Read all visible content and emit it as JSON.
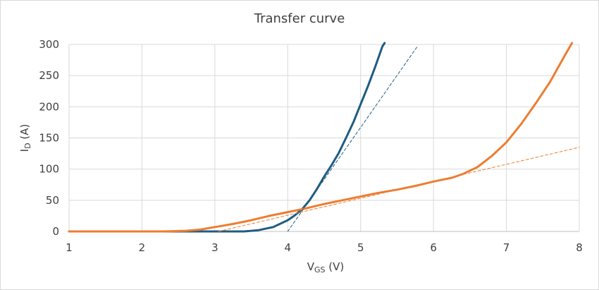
{
  "chart_data": {
    "type": "line",
    "title": "Transfer curve",
    "xlabel": {
      "main": "V",
      "sub": "GS",
      "unit": " (V)"
    },
    "ylabel": {
      "main": "I",
      "sub": "D",
      "unit": " (A)"
    },
    "xlim": [
      1,
      8
    ],
    "ylim": [
      0,
      300
    ],
    "xticks": [
      1,
      2,
      3,
      4,
      5,
      6,
      7,
      8
    ],
    "yticks": [
      0,
      50,
      100,
      150,
      200,
      250,
      300
    ],
    "grid": true,
    "legend": "none",
    "series": [
      {
        "color": "#1f5c82",
        "style": "solid",
        "points": [
          [
            1,
            0
          ],
          [
            2,
            0
          ],
          [
            3,
            0
          ],
          [
            3.4,
            0
          ],
          [
            3.6,
            2
          ],
          [
            3.8,
            7
          ],
          [
            4.0,
            18
          ],
          [
            4.1,
            26
          ],
          [
            4.2,
            36
          ],
          [
            4.3,
            50
          ],
          [
            4.4,
            68
          ],
          [
            4.5,
            88
          ],
          [
            4.6,
            106
          ],
          [
            4.7,
            126
          ],
          [
            4.8,
            150
          ],
          [
            4.9,
            175
          ],
          [
            5.0,
            204
          ],
          [
            5.1,
            233
          ],
          [
            5.2,
            264
          ],
          [
            5.3,
            297
          ],
          [
            5.33,
            305
          ]
        ]
      },
      {
        "color": "#ed7d31",
        "style": "solid",
        "points": [
          [
            1,
            0
          ],
          [
            2,
            0
          ],
          [
            2.3,
            0
          ],
          [
            2.6,
            1
          ],
          [
            2.8,
            3
          ],
          [
            3.0,
            7
          ],
          [
            3.25,
            12
          ],
          [
            3.5,
            18
          ],
          [
            3.75,
            25
          ],
          [
            4.0,
            31
          ],
          [
            4.25,
            37
          ],
          [
            4.5,
            44
          ],
          [
            4.75,
            50
          ],
          [
            5.0,
            56
          ],
          [
            5.25,
            62
          ],
          [
            5.5,
            67
          ],
          [
            5.75,
            73
          ],
          [
            6.0,
            80
          ],
          [
            6.25,
            86
          ],
          [
            6.4,
            92
          ],
          [
            6.6,
            103
          ],
          [
            6.8,
            121
          ],
          [
            7.0,
            143
          ],
          [
            7.2,
            172
          ],
          [
            7.4,
            205
          ],
          [
            7.6,
            240
          ],
          [
            7.8,
            282
          ],
          [
            7.9,
            305
          ]
        ]
      },
      {
        "color": "#1f5c82",
        "style": "dashed",
        "points": [
          [
            4.0,
            0
          ],
          [
            5.78,
            297
          ]
        ]
      },
      {
        "color": "#ed7d31",
        "style": "dashed",
        "points": [
          [
            3.05,
            0
          ],
          [
            8.0,
            135
          ]
        ]
      }
    ]
  }
}
